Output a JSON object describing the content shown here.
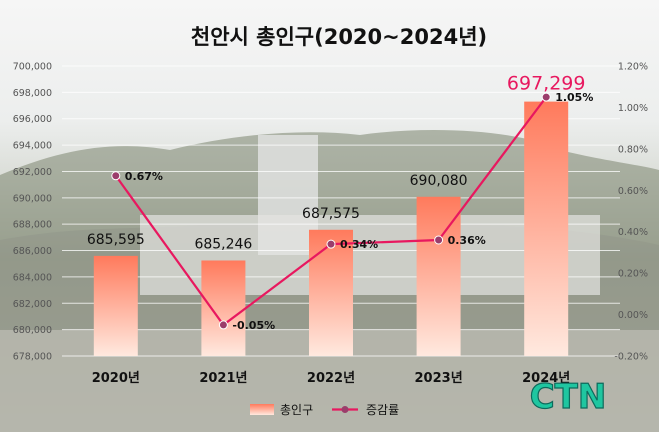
{
  "chart_data": {
    "type": "bar",
    "title": "천안시 총인구(2020~2024년)",
    "categories": [
      "2020년",
      "2021년",
      "2022년",
      "2023년",
      "2024년"
    ],
    "series": [
      {
        "name": "총인구",
        "type": "bar",
        "axis": "left",
        "values": [
          685595,
          685246,
          687575,
          690080,
          697299
        ],
        "labels": [
          "685,595",
          "685,246",
          "687,575",
          "690,080",
          "697,299"
        ]
      },
      {
        "name": "증감률",
        "type": "line",
        "axis": "right",
        "values": [
          0.67,
          -0.05,
          0.34,
          0.36,
          1.05
        ],
        "labels": [
          "0.67%",
          "-0.05%",
          "0.34%",
          "0.36%",
          "1.05%"
        ]
      }
    ],
    "y_left": {
      "min": 678000,
      "max": 700000,
      "step": 2000,
      "ticks": [
        "678,000",
        "680,000",
        "682,000",
        "684,000",
        "686,000",
        "688,000",
        "690,000",
        "692,000",
        "694,000",
        "696,000",
        "698,000",
        "700,000"
      ]
    },
    "y_right": {
      "min": -0.2,
      "max": 1.2,
      "step": 0.2,
      "ticks": [
        "-0.20%",
        "0.00%",
        "0.20%",
        "0.40%",
        "0.60%",
        "0.80%",
        "1.00%",
        "1.20%"
      ]
    },
    "grid": true,
    "legend_position": "bottom",
    "highlight_last": true
  },
  "colors": {
    "bar_top": "#ff7a5c",
    "bar_bottom": "#ffe9df",
    "line": "#e8185f",
    "marker": "#9b3d6b",
    "highlight_label": "#e8185f"
  },
  "logo": {
    "text": "CTN"
  }
}
